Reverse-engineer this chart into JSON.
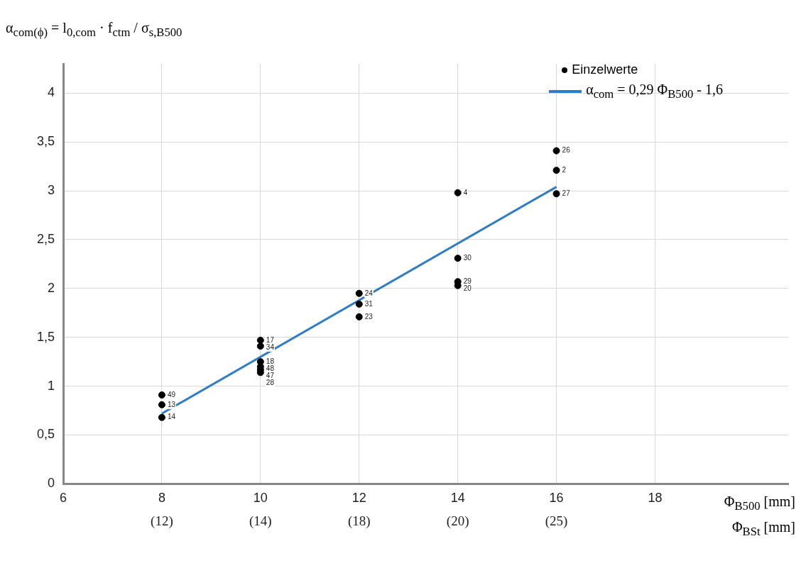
{
  "chart_data": {
    "type": "scatter",
    "ylabel": "α$_{com(ϕ)}$ = l$_{0,com}$ · f$_{ctm}$ / σ$_{s,B500}$",
    "xlabel": "Φ$_{B500}$ [mm]",
    "x2label": "Φ$_{BSt}$ [mm]",
    "xlim": [
      6,
      20.7
    ],
    "xticks": [
      6,
      8,
      10,
      12,
      14,
      16,
      18
    ],
    "ylim": [
      0,
      4.3
    ],
    "yticks": [
      0,
      {
        "value": 0.5,
        "label": "0,5"
      },
      1,
      {
        "value": 1.5,
        "label": "1,5"
      },
      2,
      {
        "value": 2.5,
        "label": "2,5"
      },
      3,
      {
        "value": 3.5,
        "label": "3,5"
      },
      4
    ],
    "grid": true,
    "legend": "top right",
    "marker": "circle",
    "series": [
      {
        "name": "Einzelwerte",
        "color": "#000000",
        "x": [
          8,
          8,
          8,
          10,
          10,
          10,
          10,
          10,
          10,
          12,
          12,
          12,
          14,
          14,
          14,
          14,
          16,
          16,
          16
        ],
        "values": [
          0.91,
          0.81,
          0.68,
          1.47,
          1.41,
          1.25,
          1.2,
          1.17,
          1.14,
          1.95,
          1.84,
          1.71,
          2.98,
          2.31,
          2.07,
          2.03,
          3.41,
          3.21,
          2.97
        ]
      },
      {
        "name": "α$_{com}$ = 0,29 Φ$_{B500}$ - 1,6",
        "type": "line",
        "marker": "none",
        "color": "#2e7dc6",
        "x": [
          8,
          16
        ],
        "values": [
          0.72,
          3.04
        ]
      }
    ],
    "annotations": [
      {
        "text": "49",
        "x": 8,
        "y": 0.91
      },
      {
        "text": "13",
        "x": 8,
        "y": 0.81
      },
      {
        "text": "14",
        "x": 8,
        "y": 0.68
      },
      {
        "text": "17",
        "x": 10,
        "y": 1.47
      },
      {
        "text": "34",
        "x": 10,
        "y": 1.41
      },
      {
        "text": "18",
        "x": 10,
        "y": 1.25
      },
      {
        "text": "48",
        "x": 10,
        "y": 1.2
      },
      {
        "text": "47",
        "x": 10,
        "y": 1.17
      },
      {
        "text": "28",
        "x": 10,
        "y": 1.14
      },
      {
        "text": "24",
        "x": 12,
        "y": 1.95
      },
      {
        "text": "31",
        "x": 12,
        "y": 1.84
      },
      {
        "text": "23",
        "x": 12,
        "y": 1.71
      },
      {
        "text": "4",
        "x": 14,
        "y": 2.98
      },
      {
        "text": "30",
        "x": 14,
        "y": 2.31
      },
      {
        "text": "29",
        "x": 14,
        "y": 2.07
      },
      {
        "text": "20",
        "x": 14,
        "y": 2.03
      },
      {
        "text": "26",
        "x": 16,
        "y": 3.41
      },
      {
        "text": "2",
        "x": 16,
        "y": 3.21
      },
      {
        "text": "27",
        "x": 16,
        "y": 2.97
      },
      "(12)",
      "(14)",
      "(18)",
      "(20)",
      "(25)"
    ]
  }
}
